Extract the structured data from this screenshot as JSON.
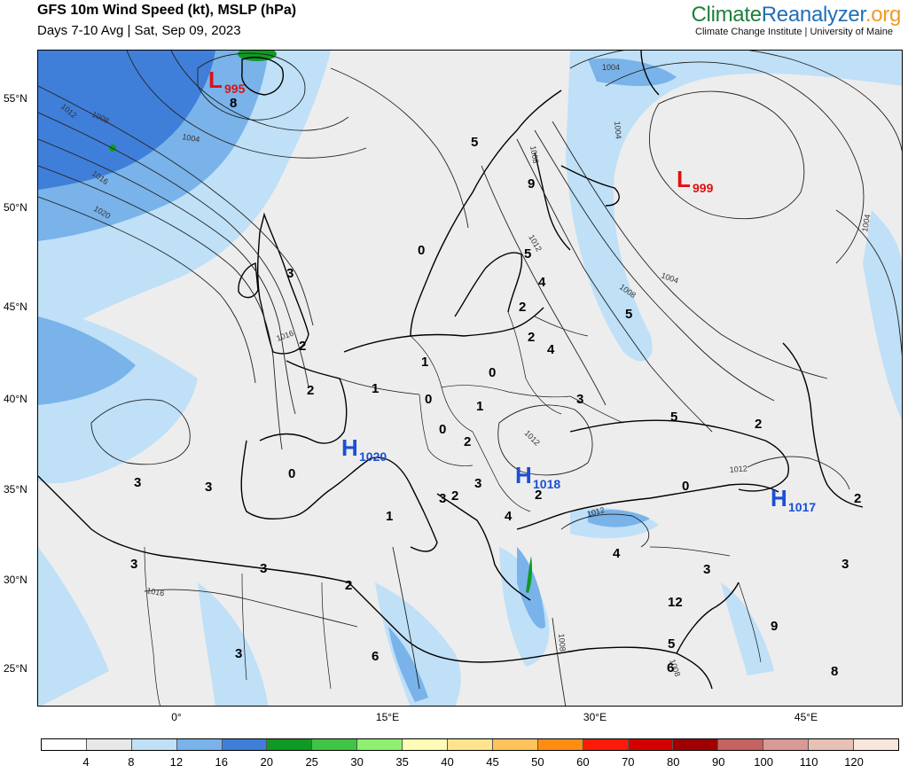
{
  "header": {
    "title": "GFS 10m Wind Speed (kt), MSLP (hPa)",
    "subtitle": "Days 7-10 Avg | Sat, Sep 09, 2023",
    "brand_part1": "Climate",
    "brand_part2": "Reanalyzer",
    "brand_part3": ".org",
    "brand_sub": "Climate Change Institute | University of Maine"
  },
  "axes": {
    "lat_labels": [
      "55°N",
      "50°N",
      "45°N",
      "40°N",
      "35°N",
      "30°N",
      "25°N"
    ],
    "lon_labels": [
      "0°",
      "15°E",
      "30°E",
      "45°E"
    ]
  },
  "systems": [
    {
      "type": "L",
      "value": "995"
    },
    {
      "type": "L",
      "value": "999"
    },
    {
      "type": "H",
      "value": "1020"
    },
    {
      "type": "H",
      "value": "1018"
    },
    {
      "type": "H",
      "value": "1017"
    }
  ],
  "isobar_labels": [
    "1004",
    "1008",
    "1012",
    "1016",
    "1020",
    "1004",
    "1008",
    "1004",
    "1012",
    "1008",
    "1016",
    "1012",
    "1012",
    "1016",
    "1008",
    "1004"
  ],
  "wind_values": [
    "8",
    "5",
    "9",
    "0",
    "5",
    "4",
    "2",
    "3",
    "2",
    "4",
    "1",
    "0",
    "2",
    "1",
    "0",
    "1",
    "3",
    "0",
    "2",
    "2",
    "3",
    "5",
    "3",
    "0",
    "2",
    "2",
    "3",
    "4",
    "1",
    "3",
    "3",
    "3",
    "2",
    "4",
    "3",
    "12",
    "3",
    "6",
    "5",
    "6",
    "9",
    "2",
    "3",
    "8",
    "0",
    "5",
    "2"
  ],
  "colorbar": {
    "labels": [
      "4",
      "8",
      "12",
      "16",
      "20",
      "25",
      "30",
      "35",
      "40",
      "45",
      "50",
      "60",
      "70",
      "80",
      "90",
      "100",
      "110",
      "120"
    ],
    "colors": [
      "#ffffff",
      "#e8e8e8",
      "#bfe0f7",
      "#79b3ea",
      "#3f7fd9",
      "#0f9a25",
      "#3fc545",
      "#8ef06e",
      "#fffcb5",
      "#ffe48d",
      "#ffc35b",
      "#ff8d12",
      "#ff1a0a",
      "#d40000",
      "#a10000",
      "#c76262",
      "#d99a95",
      "#e8c0b5",
      "#f9e6da"
    ]
  }
}
